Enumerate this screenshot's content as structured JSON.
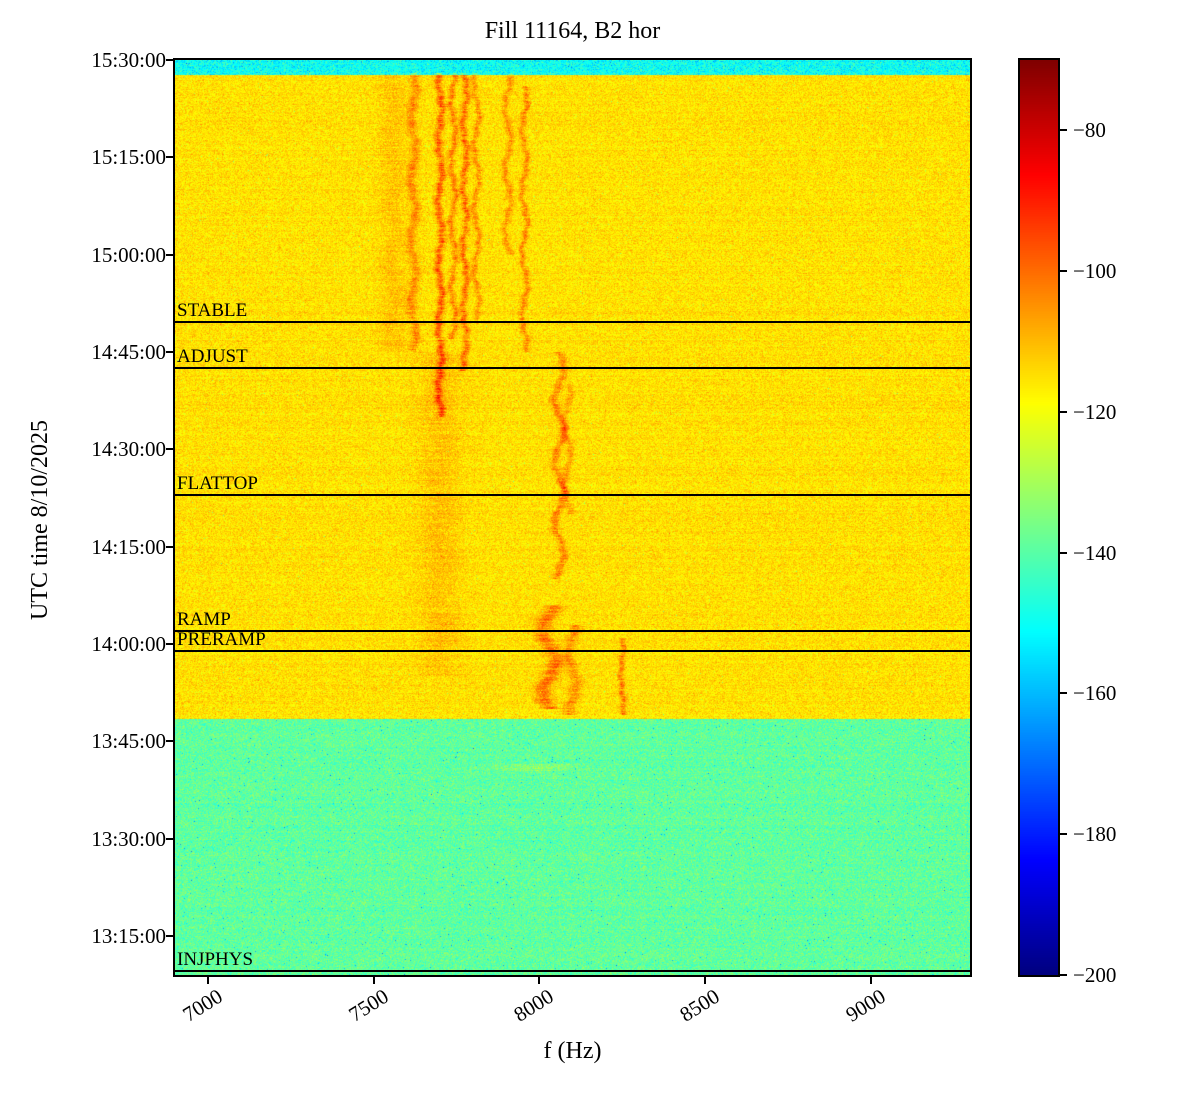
{
  "chart_data": {
    "type": "heatmap",
    "title": "Fill 11164, B2 hor",
    "xlabel": "f (Hz)",
    "ylabel": "UTC time 8/10/2025",
    "colormap": "jet",
    "x_range_hz": [
      6900,
      9300
    ],
    "x_ticks": [
      {
        "value": 7000,
        "label": "7000"
      },
      {
        "value": 7500,
        "label": "7500"
      },
      {
        "value": 8000,
        "label": "8000"
      },
      {
        "value": 8500,
        "label": "8500"
      },
      {
        "value": 9000,
        "label": "9000"
      }
    ],
    "y_top_time": "15:30:00",
    "y_bottom_time": "13:09:00",
    "y_ticks": [
      "15:30:00",
      "15:15:00",
      "15:00:00",
      "14:45:00",
      "14:30:00",
      "14:15:00",
      "14:00:00",
      "13:45:00",
      "13:30:00",
      "13:15:00"
    ],
    "colorbar": {
      "vmin": -200,
      "vmax": -70,
      "ticks": [
        {
          "value": -80,
          "label": "−80"
        },
        {
          "value": -100,
          "label": "−100"
        },
        {
          "value": -120,
          "label": "−120"
        },
        {
          "value": -140,
          "label": "−140"
        },
        {
          "value": -160,
          "label": "−160"
        },
        {
          "value": -180,
          "label": "−180"
        },
        {
          "value": -200,
          "label": "−200"
        }
      ]
    },
    "beam_modes": [
      {
        "label": "STABLE",
        "time": "14:49:40"
      },
      {
        "label": "ADJUST",
        "time": "14:42:30"
      },
      {
        "label": "FLATTOP",
        "time": "14:23:00"
      },
      {
        "label": "RAMP",
        "time": "14:02:00"
      },
      {
        "label": "PRERAMP",
        "time": "13:59:00"
      },
      {
        "label": "INJPHYS",
        "time": "13:09:40"
      }
    ],
    "regions": [
      {
        "name": "top-cyan-band",
        "t_start": "15:27:40",
        "t_end": "15:30:00",
        "mean_db": -150,
        "std_db": 5.0
      },
      {
        "name": "beam-yellow",
        "t_start": "13:48:30",
        "t_end": "15:27:40",
        "mean_db": -115,
        "std_db": 3.2
      },
      {
        "name": "pre-injection-green",
        "t_start": "13:09:00",
        "t_end": "13:48:30",
        "mean_db": -139,
        "std_db": 3.8
      }
    ],
    "streaks": [
      {
        "f_hz": 7620,
        "amp_db": 10,
        "width_hz": 14,
        "t_start": "14:45:00",
        "t_end": "15:28:00",
        "wiggle_hz": 8
      },
      {
        "f_hz": 7700,
        "amp_db": 16,
        "width_hz": 11,
        "t_start": "14:35:00",
        "t_end": "15:28:00",
        "wiggle_hz": 6
      },
      {
        "f_hz": 7740,
        "amp_db": 12,
        "width_hz": 9,
        "t_start": "14:47:00",
        "t_end": "15:28:00",
        "wiggle_hz": 7
      },
      {
        "f_hz": 7775,
        "amp_db": 14,
        "width_hz": 10,
        "t_start": "14:42:00",
        "t_end": "15:28:00",
        "wiggle_hz": 6
      },
      {
        "f_hz": 7810,
        "amp_db": 10,
        "width_hz": 9,
        "t_start": "14:50:00",
        "t_end": "15:28:00",
        "wiggle_hz": 8
      },
      {
        "f_hz": 7905,
        "amp_db": 9,
        "width_hz": 10,
        "t_start": "15:00:00",
        "t_end": "15:28:00",
        "wiggle_hz": 10
      },
      {
        "f_hz": 7955,
        "amp_db": 11,
        "width_hz": 9,
        "t_start": "14:45:00",
        "t_end": "15:26:00",
        "wiggle_hz": 8
      },
      {
        "f_hz": 8060,
        "amp_db": 11,
        "width_hz": 12,
        "t_start": "14:10:00",
        "t_end": "14:45:00",
        "wiggle_hz": 14
      },
      {
        "f_hz": 8085,
        "amp_db": 8,
        "width_hz": 10,
        "t_start": "14:20:00",
        "t_end": "14:40:00",
        "wiggle_hz": 10
      },
      {
        "f_hz": 8030,
        "amp_db": 13,
        "width_hz": 25,
        "t_start": "13:50:00",
        "t_end": "14:06:00",
        "wiggle_hz": 20
      },
      {
        "f_hz": 8100,
        "amp_db": 10,
        "width_hz": 18,
        "t_start": "13:49:00",
        "t_end": "14:03:00",
        "wiggle_hz": 12
      },
      {
        "f_hz": 8250,
        "amp_db": 12,
        "width_hz": 9,
        "t_start": "13:49:00",
        "t_end": "14:01:00",
        "wiggle_hz": 4
      },
      {
        "f_hz": 7560,
        "amp_db": 4,
        "width_hz": 40,
        "t_start": "14:45:00",
        "t_end": "15:28:00",
        "wiggle_hz": 10
      },
      {
        "f_hz": 7700,
        "amp_db": 4,
        "width_hz": 60,
        "t_start": "13:55:00",
        "t_end": "14:45:00",
        "wiggle_hz": 10
      },
      {
        "f_hz": 8000,
        "amp_db": 5,
        "width_hz": 120,
        "t_start": "13:40:30",
        "t_end": "13:41:30",
        "wiggle_hz": 0
      }
    ]
  }
}
